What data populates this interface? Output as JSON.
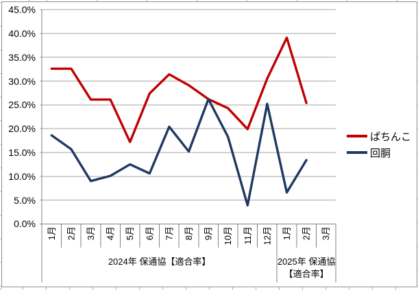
{
  "chart_data": {
    "type": "line",
    "title": "",
    "categories": [
      "1月",
      "2月",
      "3月",
      "4月",
      "5月",
      "6月",
      "7月",
      "8月",
      "9月",
      "10月",
      "11月",
      "12月",
      "1月",
      "2月",
      "3月"
    ],
    "category_groups": [
      {
        "label": "2024年 保通協【適合率】",
        "span": 12
      },
      {
        "label": "2025年 保通協【適合率】",
        "span": 3
      }
    ],
    "series": [
      {
        "name": "ぱちんこ",
        "slug": "pachinko",
        "color": "#C00000",
        "values": [
          32.6,
          32.6,
          26.1,
          26.1,
          17.2,
          27.4,
          31.4,
          29.1,
          26.2,
          24.3,
          19.9,
          30.5,
          39.1,
          25.4,
          null
        ]
      },
      {
        "name": "回胴",
        "slug": "kaidou",
        "color": "#1F3864",
        "values": [
          18.6,
          15.7,
          9.0,
          10.1,
          12.5,
          10.6,
          20.4,
          15.2,
          26.2,
          18.3,
          3.9,
          25.2,
          6.6,
          13.4,
          null
        ]
      }
    ],
    "ylim": [
      0,
      45
    ],
    "ytick_step": 5,
    "ytick_labels": [
      "45.0%",
      "40.0%",
      "35.0%",
      "30.0%",
      "25.0%",
      "20.0%",
      "15.0%",
      "10.0%",
      "5.0%",
      "0.0%"
    ],
    "grid": true,
    "legend_position": "right",
    "axis_color": "#808080",
    "gridline_color": "#a6a6a6",
    "text_color": "#000000"
  }
}
